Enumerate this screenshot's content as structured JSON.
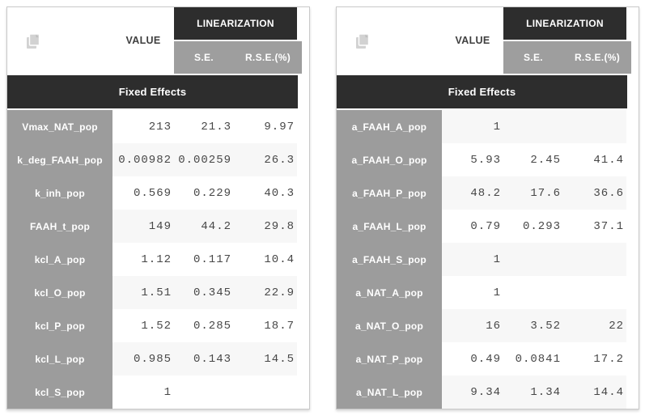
{
  "labels": {
    "value": "VALUE",
    "linearization": "LINEARIZATION",
    "se": "S.E.",
    "rse": "R.S.E.(%)",
    "section": "Fixed Effects"
  },
  "icons": {
    "copy": "copy-icon"
  },
  "colors": {
    "header_dark": "#2d2d2d",
    "subheader_gray": "#9e9e9e",
    "name_gray": "#9c9c9c",
    "stripe": "#f7f7f7",
    "value_text": "#474747",
    "header_text": "#ffffff",
    "value_header_text": "#3f3f3f",
    "icon_gray": "#d2d2d2",
    "border": "#c9c9c9"
  },
  "tables": [
    {
      "id": "fixed-effects-table-left",
      "shaded_rows": "even",
      "rows": [
        {
          "param": "Vmax_NAT_pop",
          "value": "213",
          "se": "21.3",
          "rse": "9.97"
        },
        {
          "param": "k_deg_FAAH_pop",
          "value": "0.00982",
          "se": "0.00259",
          "rse": "26.3"
        },
        {
          "param": "k_inh_pop",
          "value": "0.569",
          "se": "0.229",
          "rse": "40.3"
        },
        {
          "param": "FAAH_t_pop",
          "value": "149",
          "se": "44.2",
          "rse": "29.8"
        },
        {
          "param": "kcl_A_pop",
          "value": "1.12",
          "se": "0.117",
          "rse": "10.4"
        },
        {
          "param": "kcl_O_pop",
          "value": "1.51",
          "se": "0.345",
          "rse": "22.9"
        },
        {
          "param": "kcl_P_pop",
          "value": "1.52",
          "se": "0.285",
          "rse": "18.7"
        },
        {
          "param": "kcl_L_pop",
          "value": "0.985",
          "se": "0.143",
          "rse": "14.5"
        },
        {
          "param": "kcl_S_pop",
          "value": "1",
          "se": "",
          "rse": ""
        }
      ]
    },
    {
      "id": "fixed-effects-table-right",
      "shaded_rows": "odd",
      "rows": [
        {
          "param": "a_FAAH_A_pop",
          "value": "1",
          "se": "",
          "rse": ""
        },
        {
          "param": "a_FAAH_O_pop",
          "value": "5.93",
          "se": "2.45",
          "rse": "41.4"
        },
        {
          "param": "a_FAAH_P_pop",
          "value": "48.2",
          "se": "17.6",
          "rse": "36.6"
        },
        {
          "param": "a_FAAH_L_pop",
          "value": "0.79",
          "se": "0.293",
          "rse": "37.1"
        },
        {
          "param": "a_FAAH_S_pop",
          "value": "1",
          "se": "",
          "rse": ""
        },
        {
          "param": "a_NAT_A_pop",
          "value": "1",
          "se": "",
          "rse": ""
        },
        {
          "param": "a_NAT_O_pop",
          "value": "16",
          "se": "3.52",
          "rse": "22"
        },
        {
          "param": "a_NAT_P_pop",
          "value": "0.49",
          "se": "0.0841",
          "rse": "17.2"
        },
        {
          "param": "a_NAT_L_pop",
          "value": "9.34",
          "se": "1.34",
          "rse": "14.4"
        }
      ]
    }
  ]
}
